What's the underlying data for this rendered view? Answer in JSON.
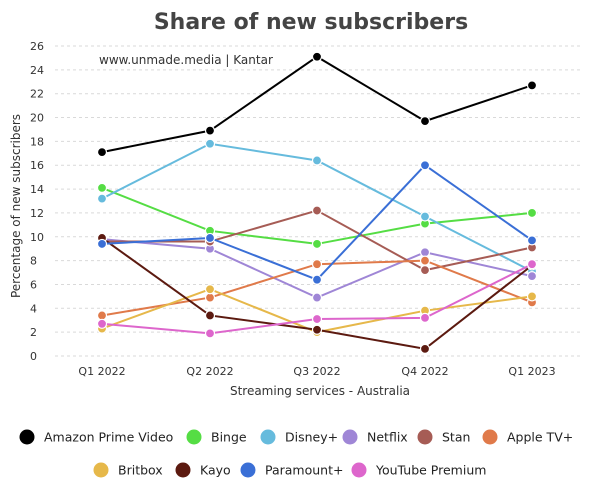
{
  "chart_data": {
    "type": "line",
    "title": "Share of new subscribers",
    "source": "www.unmade.media | Kantar",
    "xlabel": "Streaming services - Australia",
    "ylabel": "Percentage of new subscribers",
    "ylim": [
      0,
      26
    ],
    "y_ticks": [
      0,
      2,
      4,
      6,
      8,
      10,
      12,
      14,
      16,
      18,
      20,
      22,
      24,
      26
    ],
    "grid": "horizontal dashed",
    "legend_position": "bottom",
    "categories": [
      "Q1 2022",
      "Q2 2022",
      "Q3 2022",
      "Q4 2022",
      "Q1 2023"
    ],
    "series": [
      {
        "name": "Amazon Prime Video",
        "color": "#000000",
        "values": [
          17.1,
          18.9,
          25.1,
          19.7,
          22.7
        ]
      },
      {
        "name": "Binge",
        "color": "#55dd44",
        "values": [
          14.1,
          10.5,
          9.4,
          11.1,
          12.0
        ]
      },
      {
        "name": "Disney+",
        "color": "#66bbdd",
        "values": [
          13.2,
          17.8,
          16.4,
          11.7,
          7.1
        ]
      },
      {
        "name": "Netflix",
        "color": "#9f86d6",
        "values": [
          9.8,
          9.0,
          4.9,
          8.7,
          6.7
        ]
      },
      {
        "name": "Stan",
        "color": "#a65c55",
        "values": [
          9.6,
          9.6,
          12.2,
          7.2,
          9.1
        ]
      },
      {
        "name": "Apple TV+",
        "color": "#e07a4a",
        "values": [
          3.4,
          4.9,
          7.7,
          8.0,
          4.5
        ]
      },
      {
        "name": "Britbox",
        "color": "#e6b84a",
        "values": [
          2.3,
          5.6,
          2.0,
          3.8,
          5.0
        ]
      },
      {
        "name": "Kayo",
        "color": "#5c1a10",
        "values": [
          9.9,
          3.4,
          2.2,
          0.6,
          7.6
        ]
      },
      {
        "name": "Paramount+",
        "color": "#3a6fd6",
        "values": [
          9.4,
          9.9,
          6.4,
          16.0,
          9.7
        ]
      },
      {
        "name": "YouTube Premium",
        "color": "#dd66cc",
        "values": [
          2.7,
          1.9,
          3.1,
          3.2,
          7.7
        ]
      }
    ]
  }
}
